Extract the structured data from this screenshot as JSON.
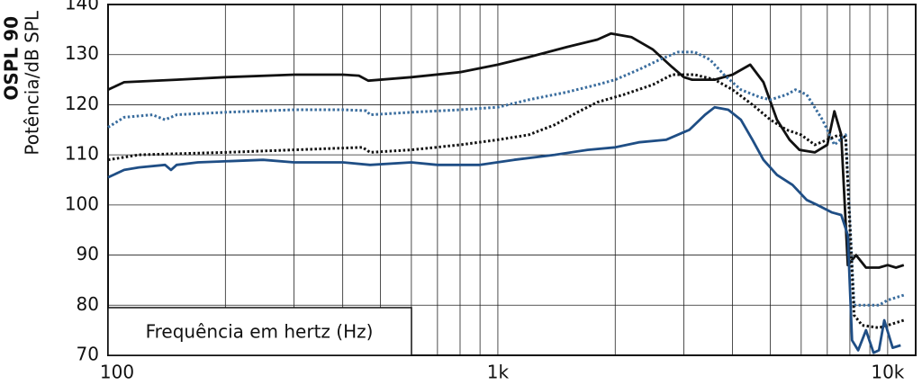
{
  "chart_data": {
    "type": "line",
    "y_label_bold": "OSPL 90",
    "y_label": "Potência/dB SPL",
    "x_label": "Frequência em hertz (Hz)",
    "xscale": "log",
    "xlim": [
      100,
      11800
    ],
    "xticks": [
      100,
      {
        "value": 1000,
        "label": "1k"
      },
      {
        "value": 10000,
        "label": "10k"
      }
    ],
    "xminorticks": [
      200,
      300,
      400,
      500,
      600,
      700,
      800,
      900,
      2000,
      3000,
      4000,
      5000,
      6000,
      7000,
      8000,
      9000
    ],
    "ylim": [
      70,
      140
    ],
    "yticks": [
      70,
      80,
      90,
      100,
      110,
      120,
      130,
      140
    ],
    "grid": true,
    "series": [
      {
        "color": "#111111",
        "style": "solid",
        "x": [
          100,
          110,
          150,
          200,
          300,
          400,
          440,
          465,
          600,
          800,
          1000,
          1200,
          1500,
          1800,
          1950,
          2200,
          2500,
          2800,
          3000,
          3150,
          3600,
          4000,
          4440,
          4800,
          5200,
          5600,
          5940,
          6500,
          7000,
          7300,
          7600,
          7900,
          8300,
          8800,
          9500,
          10000,
          10500,
          11000
        ],
        "values": [
          123,
          124.5,
          125,
          125.5,
          126,
          126,
          125.8,
          124.8,
          125.5,
          126.5,
          128,
          129.5,
          131.5,
          133,
          134.2,
          133.5,
          131,
          127.5,
          125.5,
          125,
          125,
          126,
          128,
          124.5,
          117,
          113,
          111,
          110.5,
          112,
          118.7,
          114,
          88,
          90,
          87.5,
          87.5,
          88,
          87.5,
          88
        ]
      },
      {
        "color": "#3a6d9e",
        "style": "dotted",
        "x": [
          100,
          110,
          130,
          140,
          150,
          200,
          300,
          400,
          460,
          470,
          600,
          800,
          1000,
          1200,
          1500,
          1800,
          2000,
          2300,
          2600,
          2900,
          3200,
          3500,
          3800,
          4200,
          4700,
          5000,
          5500,
          5800,
          6200,
          6800,
          7300,
          7800,
          8200,
          9000,
          9500,
          10000,
          11000
        ],
        "values": [
          115.5,
          117.5,
          118,
          117,
          118,
          118.5,
          119,
          119,
          118.8,
          118,
          118.5,
          119,
          119.5,
          121,
          122.5,
          124,
          125,
          127,
          129,
          130.5,
          130.5,
          129,
          126,
          123,
          121.5,
          121,
          122,
          123,
          122,
          117,
          112,
          114,
          80,
          80,
          80,
          81,
          82
        ]
      },
      {
        "color": "#111111",
        "style": "dotted",
        "x": [
          100,
          120,
          200,
          300,
          450,
          470,
          600,
          800,
          1000,
          1200,
          1400,
          1600,
          1800,
          2100,
          2500,
          2800,
          3200,
          3600,
          4000,
          4500,
          5000,
          5500,
          6000,
          6500,
          7000,
          7500,
          7800,
          8200,
          8600,
          9500,
          10000,
          11000
        ],
        "values": [
          109,
          110,
          110.5,
          111,
          111.5,
          110.5,
          111,
          112,
          113,
          114,
          116,
          118.5,
          120.5,
          122,
          124,
          126,
          126,
          125,
          123,
          120,
          117,
          115,
          114,
          112,
          113,
          114,
          113.5,
          78,
          76,
          75.5,
          76,
          77
        ]
      },
      {
        "color": "#1f4e85",
        "style": "solid",
        "x": [
          100,
          110,
          120,
          140,
          145,
          150,
          170,
          250,
          300,
          400,
          470,
          600,
          700,
          900,
          1100,
          1400,
          1700,
          2000,
          2300,
          2700,
          3100,
          3400,
          3600,
          3900,
          4200,
          4500,
          4800,
          5200,
          5700,
          6200,
          6600,
          7200,
          7600,
          7900,
          8100,
          8400,
          8800,
          9200,
          9500,
          9800,
          10300,
          10800
        ],
        "values": [
          105.5,
          107,
          107.5,
          108,
          107,
          108,
          108.5,
          109,
          108.5,
          108.5,
          108,
          108.5,
          108,
          108,
          109,
          110,
          111,
          111.5,
          112.5,
          113,
          115,
          118,
          119.5,
          119,
          117,
          113,
          109,
          106,
          104,
          101,
          100,
          98.5,
          98,
          94,
          73,
          71,
          75,
          70.5,
          71,
          77,
          71.5,
          72
        ]
      }
    ]
  }
}
